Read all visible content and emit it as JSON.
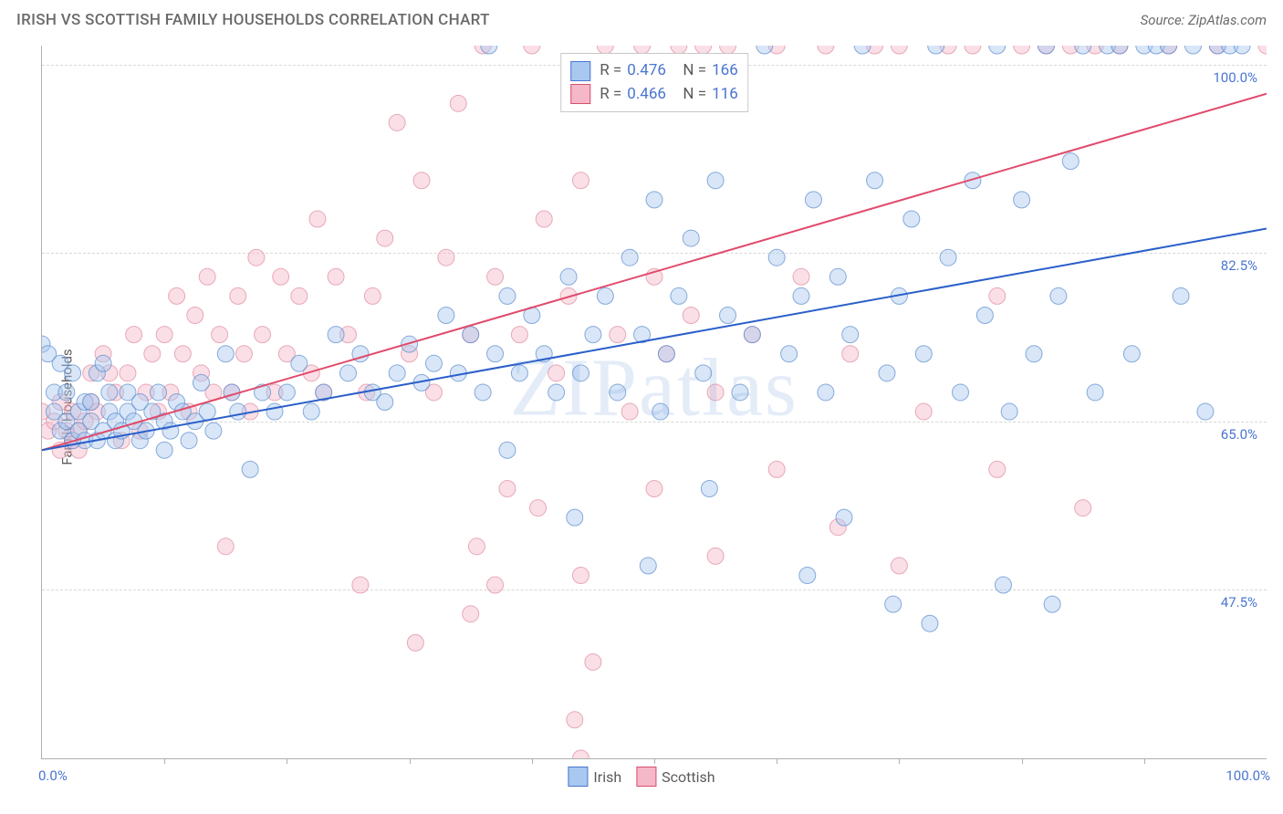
{
  "header": {
    "title": "IRISH VS SCOTTISH FAMILY HOUSEHOLDS CORRELATION CHART",
    "source": "Source: ZipAtlas.com"
  },
  "watermark": "ZIPatlas",
  "ylabel": "Family Households",
  "chart": {
    "type": "scatter",
    "xlim": [
      0,
      100
    ],
    "ylim": [
      30,
      104
    ],
    "x_ticks": [
      10,
      20,
      30,
      40,
      50,
      60,
      70,
      80,
      90
    ],
    "y_gridlines": [
      {
        "val": 102,
        "label": "100.0%"
      },
      {
        "val": 82.5,
        "label": "82.5%"
      },
      {
        "val": 65.0,
        "label": "65.0%"
      },
      {
        "val": 47.5,
        "label": "47.5%"
      }
    ],
    "x_axis_labels": {
      "left": "0.0%",
      "right": "100.0%"
    },
    "marker_radius": 9,
    "marker_opacity": 0.45,
    "grid_color": "#d8d8d8",
    "axis_color": "#b0b0b0"
  },
  "series": {
    "irish": {
      "name": "Irish",
      "label": "Irish",
      "swatch_fill": "#a8c8f0",
      "swatch_border": "#4a75d1",
      "marker_fill": "#a8c8f0",
      "marker_stroke": "#5a8acc",
      "line_color": "#2a5fc9",
      "line_width": 2,
      "stats": {
        "R": "0.476",
        "N": "166"
      },
      "trend": {
        "x1": 0,
        "y1": 62,
        "x2": 100,
        "y2": 85
      },
      "points": [
        [
          0,
          73
        ],
        [
          0.5,
          72
        ],
        [
          1,
          66
        ],
        [
          1,
          68
        ],
        [
          1.5,
          71
        ],
        [
          1.5,
          64
        ],
        [
          2,
          65
        ],
        [
          2,
          68
        ],
        [
          2.5,
          63
        ],
        [
          2.5,
          70
        ],
        [
          3,
          64
        ],
        [
          3,
          66
        ],
        [
          3.5,
          67
        ],
        [
          3.5,
          63
        ],
        [
          4,
          65
        ],
        [
          4,
          67
        ],
        [
          4.5,
          70
        ],
        [
          4.5,
          63
        ],
        [
          5,
          71
        ],
        [
          5,
          64
        ],
        [
          5.5,
          66
        ],
        [
          5.5,
          68
        ],
        [
          6,
          63
        ],
        [
          6,
          65
        ],
        [
          6.5,
          64
        ],
        [
          7,
          66
        ],
        [
          7,
          68
        ],
        [
          7.5,
          65
        ],
        [
          8,
          67
        ],
        [
          8,
          63
        ],
        [
          8.5,
          64
        ],
        [
          9,
          66
        ],
        [
          9.5,
          68
        ],
        [
          10,
          65
        ],
        [
          10,
          62
        ],
        [
          10.5,
          64
        ],
        [
          11,
          67
        ],
        [
          11.5,
          66
        ],
        [
          12,
          63
        ],
        [
          12.5,
          65
        ],
        [
          13,
          69
        ],
        [
          13.5,
          66
        ],
        [
          14,
          64
        ],
        [
          15,
          72
        ],
        [
          15.5,
          68
        ],
        [
          16,
          66
        ],
        [
          17,
          60
        ],
        [
          18,
          68
        ],
        [
          19,
          66
        ],
        [
          20,
          68
        ],
        [
          21,
          71
        ],
        [
          22,
          66
        ],
        [
          23,
          68
        ],
        [
          24,
          74
        ],
        [
          25,
          70
        ],
        [
          26,
          72
        ],
        [
          27,
          68
        ],
        [
          28,
          67
        ],
        [
          29,
          70
        ],
        [
          30,
          73
        ],
        [
          31,
          69
        ],
        [
          32,
          71
        ],
        [
          33,
          76
        ],
        [
          34,
          70
        ],
        [
          35,
          74
        ],
        [
          36,
          68
        ],
        [
          36.5,
          104
        ],
        [
          37,
          72
        ],
        [
          38,
          78
        ],
        [
          38,
          62
        ],
        [
          39,
          70
        ],
        [
          40,
          76
        ],
        [
          41,
          72
        ],
        [
          42,
          68
        ],
        [
          43,
          80
        ],
        [
          43.5,
          55
        ],
        [
          44,
          70
        ],
        [
          45,
          74
        ],
        [
          46,
          78
        ],
        [
          47,
          68
        ],
        [
          48,
          82
        ],
        [
          49,
          74
        ],
        [
          49.5,
          50
        ],
        [
          50,
          88
        ],
        [
          50.5,
          66
        ],
        [
          51,
          72
        ],
        [
          52,
          78
        ],
        [
          53,
          84
        ],
        [
          54,
          70
        ],
        [
          54.5,
          58
        ],
        [
          55,
          90
        ],
        [
          56,
          76
        ],
        [
          57,
          68
        ],
        [
          58,
          74
        ],
        [
          59,
          104
        ],
        [
          60,
          82
        ],
        [
          61,
          72
        ],
        [
          62,
          78
        ],
        [
          62.5,
          49
        ],
        [
          63,
          88
        ],
        [
          64,
          68
        ],
        [
          65,
          80
        ],
        [
          65.5,
          55
        ],
        [
          66,
          74
        ],
        [
          67,
          104
        ],
        [
          68,
          90
        ],
        [
          69,
          70
        ],
        [
          69.5,
          46
        ],
        [
          70,
          78
        ],
        [
          71,
          86
        ],
        [
          72,
          72
        ],
        [
          72.5,
          44
        ],
        [
          73,
          104
        ],
        [
          74,
          82
        ],
        [
          75,
          68
        ],
        [
          76,
          90
        ],
        [
          77,
          76
        ],
        [
          78,
          104
        ],
        [
          78.5,
          48
        ],
        [
          79,
          66
        ],
        [
          80,
          88
        ],
        [
          81,
          72
        ],
        [
          82,
          104
        ],
        [
          82.5,
          46
        ],
        [
          83,
          78
        ],
        [
          84,
          92
        ],
        [
          85,
          104
        ],
        [
          86,
          68
        ],
        [
          87,
          104
        ],
        [
          88,
          104
        ],
        [
          89,
          72
        ],
        [
          90,
          104
        ],
        [
          91,
          104
        ],
        [
          92,
          104
        ],
        [
          93,
          78
        ],
        [
          94,
          104
        ],
        [
          95,
          66
        ],
        [
          96,
          104
        ],
        [
          97,
          104
        ],
        [
          98,
          104
        ]
      ]
    },
    "scottish": {
      "name": "Scottish",
      "label": "Scottish",
      "swatch_fill": "#f5b8c8",
      "swatch_border": "#d94f6c",
      "marker_fill": "#f5b8c8",
      "marker_stroke": "#e08a9c",
      "line_color": "#e14a6b",
      "line_width": 2,
      "stats": {
        "R": "0.466",
        "N": "116"
      },
      "trend": {
        "x1": 0,
        "y1": 62,
        "x2": 100,
        "y2": 99
      },
      "points": [
        [
          0,
          66
        ],
        [
          0.5,
          64
        ],
        [
          1,
          65
        ],
        [
          1.5,
          62
        ],
        [
          1.5,
          67
        ],
        [
          2,
          64
        ],
        [
          2.5,
          63
        ],
        [
          2.5,
          66
        ],
        [
          3,
          62
        ],
        [
          3,
          64
        ],
        [
          3.5,
          65
        ],
        [
          4,
          67
        ],
        [
          4,
          70
        ],
        [
          4.5,
          66
        ],
        [
          5,
          72
        ],
        [
          5.5,
          70
        ],
        [
          6,
          68
        ],
        [
          6.5,
          63
        ],
        [
          7,
          70
        ],
        [
          7.5,
          74
        ],
        [
          8,
          64
        ],
        [
          8.5,
          68
        ],
        [
          9,
          72
        ],
        [
          9.5,
          66
        ],
        [
          10,
          74
        ],
        [
          10.5,
          68
        ],
        [
          11,
          78
        ],
        [
          11.5,
          72
        ],
        [
          12,
          66
        ],
        [
          12.5,
          76
        ],
        [
          13,
          70
        ],
        [
          13.5,
          80
        ],
        [
          14,
          68
        ],
        [
          14.5,
          74
        ],
        [
          15,
          52
        ],
        [
          15.5,
          68
        ],
        [
          16,
          78
        ],
        [
          16.5,
          72
        ],
        [
          17,
          66
        ],
        [
          17.5,
          82
        ],
        [
          18,
          74
        ],
        [
          19,
          68
        ],
        [
          19.5,
          80
        ],
        [
          20,
          72
        ],
        [
          21,
          78
        ],
        [
          22,
          70
        ],
        [
          22.5,
          86
        ],
        [
          23,
          68
        ],
        [
          24,
          80
        ],
        [
          25,
          74
        ],
        [
          26,
          48
        ],
        [
          26.5,
          68
        ],
        [
          27,
          78
        ],
        [
          28,
          84
        ],
        [
          29,
          96
        ],
        [
          30,
          72
        ],
        [
          30.5,
          42
        ],
        [
          31,
          90
        ],
        [
          32,
          68
        ],
        [
          33,
          82
        ],
        [
          34,
          98
        ],
        [
          35,
          74
        ],
        [
          35.5,
          52
        ],
        [
          36,
          104
        ],
        [
          37,
          80
        ],
        [
          38,
          58
        ],
        [
          39,
          74
        ],
        [
          40,
          104
        ],
        [
          41,
          86
        ],
        [
          42,
          70
        ],
        [
          43,
          78
        ],
        [
          43.5,
          34
        ],
        [
          44,
          90
        ],
        [
          45,
          40
        ],
        [
          46,
          104
        ],
        [
          47,
          74
        ],
        [
          48,
          66
        ],
        [
          49,
          104
        ],
        [
          50,
          80
        ],
        [
          51,
          72
        ],
        [
          52,
          104
        ],
        [
          53,
          76
        ],
        [
          54,
          104
        ],
        [
          55,
          68
        ],
        [
          56,
          104
        ],
        [
          58,
          74
        ],
        [
          60,
          104
        ],
        [
          62,
          80
        ],
        [
          64,
          104
        ],
        [
          66,
          72
        ],
        [
          68,
          104
        ],
        [
          70,
          104
        ],
        [
          72,
          66
        ],
        [
          74,
          104
        ],
        [
          76,
          104
        ],
        [
          78,
          78
        ],
        [
          80,
          104
        ],
        [
          82,
          104
        ],
        [
          84,
          104
        ],
        [
          86,
          104
        ],
        [
          88,
          104
        ],
        [
          92,
          104
        ],
        [
          96,
          104
        ],
        [
          100,
          104
        ],
        [
          37,
          48
        ],
        [
          40.5,
          56
        ],
        [
          44,
          49
        ],
        [
          50,
          58
        ],
        [
          55,
          51
        ],
        [
          60,
          60
        ],
        [
          65,
          54
        ],
        [
          70,
          50
        ],
        [
          78,
          60
        ],
        [
          85,
          56
        ],
        [
          44,
          30
        ],
        [
          35,
          45
        ]
      ]
    }
  },
  "legend_order": [
    "irish",
    "scottish"
  ],
  "stats_box_order": [
    "irish",
    "scottish"
  ]
}
